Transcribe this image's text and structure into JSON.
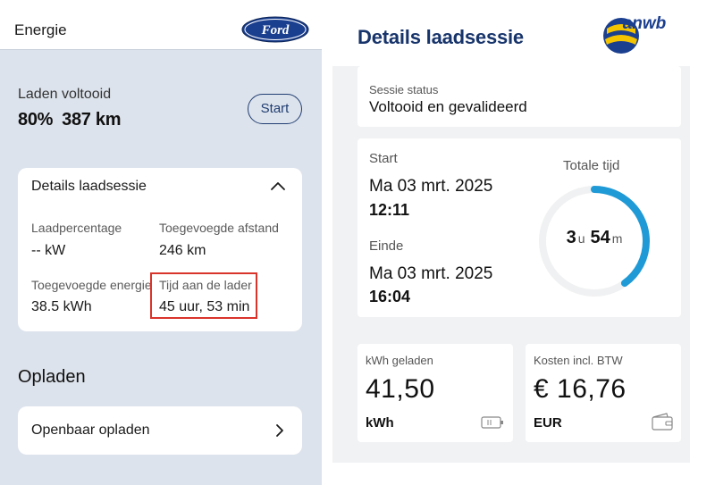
{
  "ford": {
    "header_title": "Energie",
    "logo_text": "Ford",
    "status": {
      "label": "Laden voltooid",
      "percent": "80%",
      "range": "387 km",
      "start_label": "Start"
    },
    "details": {
      "title": "Details laadsessie",
      "cells": [
        {
          "label": "Laadpercentage",
          "value": "-- kW"
        },
        {
          "label": "Toegevoegde afstand",
          "value": "246 km"
        },
        {
          "label": "Toegevoegde energie",
          "value": "38.5 kWh"
        },
        {
          "label": "Tijd aan de lader",
          "value": "45 uur, 53 min"
        }
      ]
    },
    "charging": {
      "title": "Opladen",
      "public_label": "Openbaar opladen"
    }
  },
  "anwb": {
    "title": "Details laadsessie",
    "logo_text": "anwb",
    "session": {
      "label": "Sessie status",
      "value": "Voltooid en gevalideerd"
    },
    "start": {
      "label": "Start",
      "date": "Ma 03 mrt. 2025",
      "time": "12:11"
    },
    "end": {
      "label": "Einde",
      "date": "Ma 03 mrt. 2025",
      "time": "16:04"
    },
    "total": {
      "label": "Totale tijd",
      "hours": "3",
      "hours_unit": "u",
      "minutes": "54",
      "minutes_unit": "m",
      "ring_fraction": 0.4
    },
    "kwh": {
      "label": "kWh geladen",
      "value": "41,50",
      "unit": "kWh",
      "icon": "battery-icon"
    },
    "cost": {
      "label": "Kosten incl. BTW",
      "value": "€ 16,76",
      "unit": "EUR",
      "icon": "wallet-icon"
    },
    "colors": {
      "title": "#17346b",
      "accent": "#1f9ad6",
      "ring_bg": "#f0f1f2"
    }
  }
}
